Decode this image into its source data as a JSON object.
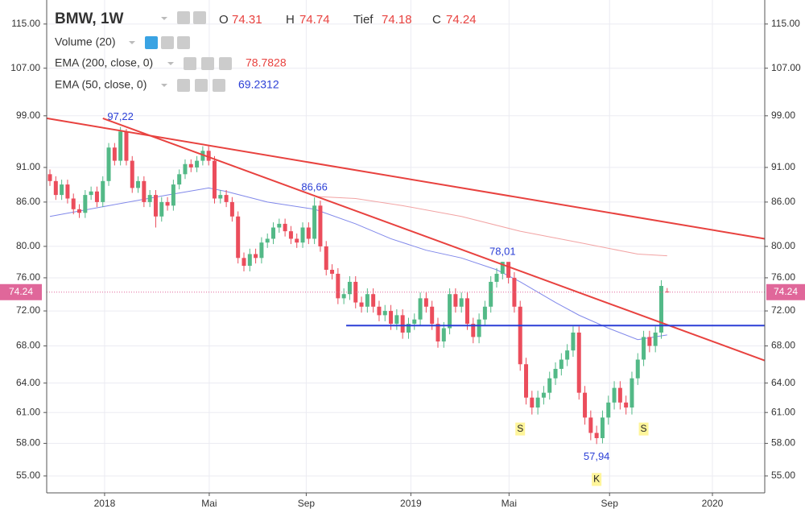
{
  "chart_data": {
    "type": "candlestick",
    "header": {
      "symbol": "BMW, 1W",
      "ohlc_labels": [
        "O",
        "H",
        "Tief",
        "C"
      ]
    },
    "volume_label": "Volume (20)",
    "log_scale": true,
    "grid": true,
    "up_color": "#53b987",
    "down_color": "#eb4d5c",
    "price_tag_color": "#e0679a",
    "ylim": [
      53.5,
      119.6
    ],
    "yticks": [
      {
        "value": 115,
        "label": "115.00"
      },
      {
        "value": 107,
        "label": "107.00"
      },
      {
        "value": 99,
        "label": "99.00"
      },
      {
        "value": 91,
        "label": "91.00"
      },
      {
        "value": 86,
        "label": "86.00"
      },
      {
        "value": 80,
        "label": "80.00"
      },
      {
        "value": 76,
        "label": "76.00"
      },
      {
        "value": 72,
        "label": "72.00"
      },
      {
        "value": 68,
        "label": "68.00"
      },
      {
        "value": 64,
        "label": "64.00"
      },
      {
        "value": 61,
        "label": "61.00"
      },
      {
        "value": 58,
        "label": "58.00"
      },
      {
        "value": 55,
        "label": "55.00"
      }
    ],
    "xlim": [
      -0.55,
      121.6
    ],
    "xticks": [
      {
        "value": 9.3,
        "label": "2018"
      },
      {
        "value": 27.1,
        "label": "Mai"
      },
      {
        "value": 43.6,
        "label": "Sep"
      },
      {
        "value": 61.4,
        "label": "2019"
      },
      {
        "value": 78.1,
        "label": "Mai"
      },
      {
        "value": 95.2,
        "label": "Sep"
      },
      {
        "value": 112.7,
        "label": "2020"
      }
    ],
    "open": [
      90,
      89,
      87,
      88.5,
      86.5,
      85,
      84.5,
      87,
      87.5,
      86,
      89,
      94,
      92,
      96.5,
      92,
      88,
      89,
      86,
      87,
      84,
      86,
      85.5,
      88.5,
      90,
      91.5,
      91,
      92,
      93.5,
      92,
      86.5,
      87,
      86,
      84,
      78.5,
      77.5,
      79,
      78.5,
      80.5,
      81,
      82.5,
      83,
      82,
      81,
      80.5,
      82.5,
      81,
      85.5,
      80,
      77,
      76.5,
      73.5,
      74,
      75.5,
      73,
      72.5,
      74,
      72.5,
      71.5,
      72,
      70.5,
      71.5,
      69.5,
      70.5,
      71,
      73.5,
      72.5,
      70.5,
      68.5,
      70,
      74,
      72.5,
      73.5,
      70.5,
      69,
      71,
      72.5,
      75.5,
      76.5,
      78,
      76,
      72.5,
      66,
      62.5,
      61.5,
      62.5,
      63,
      64.5,
      65.5,
      66.5,
      67.5,
      69.5,
      63,
      60.5,
      59,
      58.5,
      60.5,
      62,
      63.5,
      62,
      61.5,
      64.5,
      66.5,
      69,
      68,
      69.5,
      74.31
    ],
    "high": [
      90.7,
      89.7,
      89.2,
      89.2,
      87.2,
      85.7,
      87.7,
      88.2,
      88.2,
      89.7,
      94.7,
      94.7,
      97.22,
      96.9,
      92.7,
      89.7,
      89.7,
      87.7,
      87.7,
      86.7,
      86.7,
      89.2,
      90.7,
      92.2,
      92.2,
      92.7,
      94.2,
      94.2,
      92.7,
      87.7,
      87.7,
      86.7,
      84.7,
      79.2,
      79.7,
      79.7,
      81.2,
      81.7,
      83.2,
      83.7,
      83.7,
      82.7,
      81.7,
      83.2,
      83.2,
      86.66,
      86.2,
      80.7,
      77.7,
      77.2,
      74.7,
      76.2,
      76.2,
      73.7,
      74.7,
      74.7,
      73.2,
      72.7,
      72.7,
      72.2,
      72.2,
      71.2,
      71.7,
      74.2,
      74.2,
      73.2,
      71.2,
      70.7,
      74.7,
      74.7,
      74.2,
      74.2,
      71.2,
      71.7,
      73.2,
      76.2,
      77.2,
      78.01,
      77.9,
      76.7,
      73.2,
      66.7,
      63.2,
      63.2,
      63.7,
      65.2,
      66.2,
      67.2,
      68.2,
      70.2,
      70.2,
      63.7,
      61.2,
      59.7,
      61.2,
      62.7,
      64.2,
      64.2,
      62.7,
      65.2,
      67.2,
      69.7,
      69.7,
      70.2,
      75.7,
      74.74
    ],
    "low": [
      88.3,
      86.3,
      86.3,
      85.8,
      84.3,
      83.8,
      83.8,
      86.3,
      85.3,
      85.3,
      88.3,
      91.3,
      91.3,
      91.3,
      87.3,
      87.3,
      85.3,
      85.3,
      82.5,
      83.3,
      84.8,
      84.8,
      87.8,
      89.3,
      90.3,
      90.3,
      91.3,
      91.3,
      85.8,
      85.8,
      85.3,
      83.3,
      77.8,
      76.8,
      76.8,
      77.8,
      77.8,
      79.8,
      80.3,
      81.8,
      81.3,
      80.3,
      79.8,
      79.8,
      80.3,
      80.3,
      79.3,
      76.3,
      75.8,
      72.8,
      72.8,
      73.3,
      72.3,
      71.8,
      71.8,
      71.8,
      70.8,
      70.8,
      69.8,
      69.8,
      68.8,
      68.8,
      69.8,
      70.3,
      71.8,
      69.8,
      67.8,
      67.8,
      69.3,
      71.8,
      71.8,
      69.8,
      68.3,
      68.3,
      70.3,
      71.8,
      74.8,
      75.8,
      75.3,
      71.8,
      65.3,
      61.8,
      60.8,
      60.8,
      61.8,
      62.3,
      63.8,
      64.8,
      65.8,
      66.8,
      62.3,
      59.8,
      58.3,
      57.94,
      58.0,
      59.8,
      61.3,
      61.3,
      60.8,
      60.8,
      63.8,
      65.8,
      67.3,
      67.3,
      68.8,
      74.18
    ],
    "close": [
      89,
      87,
      88.5,
      86.5,
      85,
      84.5,
      87,
      87.5,
      86,
      89,
      94,
      92,
      96.5,
      92,
      88,
      89,
      86,
      87,
      84,
      86,
      85.5,
      88.5,
      90,
      91.5,
      91,
      92,
      93.5,
      92,
      86.5,
      87,
      86,
      84,
      78.5,
      77.5,
      79,
      78.5,
      80.5,
      81,
      82.5,
      83,
      82,
      81,
      80.5,
      82.5,
      81,
      85.5,
      80,
      77,
      76.5,
      73.5,
      74,
      75.5,
      73,
      72.5,
      74,
      72.5,
      71.5,
      72,
      70.5,
      71.5,
      69.5,
      70.5,
      71,
      73.5,
      72.5,
      70.5,
      68.5,
      70,
      74,
      72.5,
      73.5,
      70.5,
      69,
      71,
      72.5,
      75.5,
      76.5,
      78,
      76,
      72.5,
      66,
      62.5,
      61.5,
      62.5,
      63,
      64.5,
      65.5,
      66.5,
      67.5,
      69.5,
      63,
      60.5,
      59,
      58.5,
      60.5,
      62,
      63.5,
      62,
      61.5,
      64.5,
      66.5,
      69,
      68,
      69.5,
      75,
      74.24
    ],
    "high_labels": [
      null,
      null,
      null,
      null,
      null,
      null,
      null,
      null,
      null,
      null,
      null,
      null,
      "97,22",
      null,
      null,
      null,
      null,
      null,
      null,
      null,
      null,
      null,
      null,
      null,
      null,
      null,
      null,
      null,
      null,
      null,
      null,
      null,
      null,
      null,
      null,
      null,
      null,
      null,
      null,
      null,
      null,
      null,
      null,
      null,
      null,
      "86,66",
      null,
      null,
      null,
      null,
      null,
      null,
      null,
      null,
      null,
      null,
      null,
      null,
      null,
      null,
      null,
      null,
      null,
      null,
      null,
      null,
      null,
      null,
      null,
      null,
      null,
      null,
      null,
      null,
      null,
      null,
      null,
      "78,01",
      null,
      null,
      null,
      null,
      null,
      null,
      null,
      null,
      null,
      null,
      null,
      null,
      null,
      null,
      null,
      null,
      null,
      null,
      null,
      null,
      null,
      null,
      null,
      null,
      null,
      null,
      null,
      null
    ],
    "low_labels": [
      null,
      null,
      null,
      null,
      null,
      null,
      null,
      null,
      null,
      null,
      null,
      null,
      null,
      null,
      null,
      null,
      null,
      null,
      null,
      null,
      null,
      null,
      null,
      null,
      null,
      null,
      null,
      null,
      null,
      null,
      null,
      null,
      null,
      null,
      null,
      null,
      null,
      null,
      null,
      null,
      null,
      null,
      null,
      null,
      null,
      null,
      null,
      null,
      null,
      null,
      null,
      null,
      null,
      null,
      null,
      null,
      null,
      null,
      null,
      null,
      null,
      null,
      null,
      null,
      null,
      null,
      null,
      null,
      null,
      null,
      null,
      null,
      null,
      null,
      null,
      null,
      null,
      null,
      null,
      null,
      null,
      null,
      null,
      null,
      null,
      null,
      null,
      null,
      null,
      null,
      null,
      null,
      null,
      "57,94",
      null,
      null,
      null,
      null,
      null,
      null,
      null,
      null,
      null,
      null,
      null,
      null
    ],
    "markers": [
      null,
      null,
      null,
      null,
      null,
      null,
      null,
      null,
      null,
      null,
      null,
      null,
      null,
      null,
      null,
      null,
      null,
      null,
      null,
      null,
      null,
      null,
      null,
      null,
      null,
      null,
      null,
      null,
      null,
      null,
      null,
      null,
      null,
      null,
      null,
      null,
      null,
      null,
      null,
      null,
      null,
      null,
      null,
      null,
      null,
      null,
      null,
      null,
      null,
      null,
      null,
      null,
      null,
      null,
      null,
      null,
      null,
      null,
      null,
      null,
      null,
      null,
      null,
      null,
      null,
      null,
      null,
      null,
      null,
      null,
      null,
      null,
      null,
      null,
      null,
      null,
      null,
      null,
      null,
      null,
      "S",
      null,
      null,
      null,
      null,
      null,
      null,
      null,
      null,
      null,
      null,
      null,
      null,
      "K",
      null,
      null,
      null,
      null,
      null,
      null,
      null,
      "S",
      null,
      null,
      null,
      null
    ],
    "series": [
      {
        "name": "EMA (200, close, 0)",
        "color": "#f2a3a3",
        "label_color": "#e8423f",
        "x": [
          45,
          52,
          60,
          70,
          80,
          90,
          100,
          105
        ],
        "values": [
          86.8,
          86.5,
          85.5,
          84,
          82,
          80.5,
          79,
          78.7828
        ]
      },
      {
        "name": "EMA (50, close, 0)",
        "color": "#8088ea",
        "label_color": "#2b3fd6",
        "x": [
          0,
          10,
          20,
          27,
          30,
          37,
          45,
          52,
          58,
          64,
          70,
          76,
          80,
          86,
          90,
          95,
          100,
          105
        ],
        "values": [
          84,
          85.5,
          87,
          88,
          87.5,
          86,
          85,
          83,
          81,
          79.5,
          78.5,
          77,
          75.5,
          73,
          71.5,
          70,
          68.7,
          69.2312
        ]
      }
    ],
    "trend_lines": [
      {
        "color": "#e8423f",
        "x": [
          -0.55,
          121.6
        ],
        "values": [
          98.6,
          81
        ]
      },
      {
        "color": "#e8423f",
        "x": [
          9,
          121.6
        ],
        "values": [
          98.6,
          66.4
        ]
      },
      {
        "color": "#2b3fd6",
        "x": [
          50.4,
          121.6
        ],
        "values": [
          70.3,
          70.3
        ]
      }
    ]
  }
}
